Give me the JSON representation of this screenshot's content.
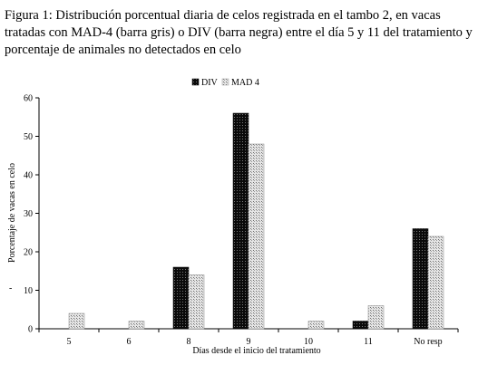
{
  "figure": {
    "caption": "Figura 1: Distribución porcentual diaria de celos registrada en el tambo 2, en vacas tratadas con MAD-4 (barra gris) o DIV (barra negra) entre el día 5 y 11 del tratamiento y porcentaje de animales no detectados en celo"
  },
  "chart_data": {
    "type": "bar",
    "categories": [
      "5",
      "6",
      "8",
      "9",
      "10",
      "11",
      "No resp"
    ],
    "series": [
      {
        "name": "DIV",
        "values": [
          0,
          0,
          16,
          56,
          0,
          2,
          26
        ],
        "color": "#111111"
      },
      {
        "name": "MAD 4",
        "values": [
          4,
          2,
          14,
          48,
          2,
          6,
          24
        ],
        "color": "#bdbdbd"
      }
    ],
    "xlabel": "Días desde el inicio del tratamiento",
    "ylabel": "Porcentaje de vacas en celo",
    "ylim": [
      0,
      60
    ],
    "yticks": [
      0,
      10,
      20,
      30,
      40,
      50,
      60
    ],
    "grid": false,
    "legend": "top-center"
  },
  "extra_mark": "-"
}
